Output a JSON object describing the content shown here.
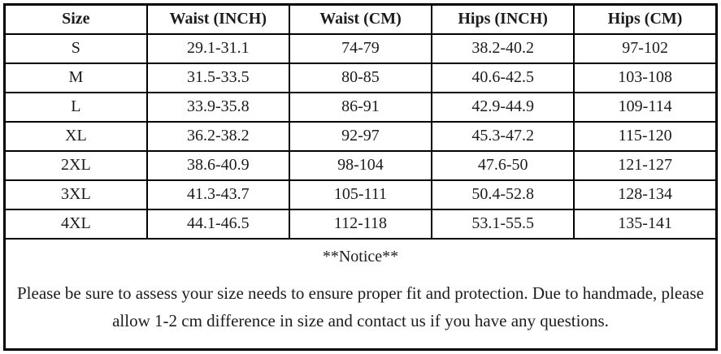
{
  "table": {
    "headers": [
      "Size",
      "Waist (INCH)",
      "Waist (CM)",
      "Hips (INCH)",
      "Hips (CM)"
    ],
    "rows": [
      [
        "S",
        "29.1-31.1",
        "74-79",
        "38.2-40.2",
        "97-102"
      ],
      [
        "M",
        "31.5-33.5",
        "80-85",
        "40.6-42.5",
        "103-108"
      ],
      [
        "L",
        "33.9-35.8",
        "86-91",
        "42.9-44.9",
        "109-114"
      ],
      [
        "XL",
        "36.2-38.2",
        "92-97",
        "45.3-47.2",
        "115-120"
      ],
      [
        "2XL",
        "38.6-40.9",
        "98-104",
        "47.6-50",
        "121-127"
      ],
      [
        "3XL",
        "41.3-43.7",
        "105-111",
        "50.4-52.8",
        "128-134"
      ],
      [
        "4XL",
        "44.1-46.5",
        "112-118",
        "53.1-55.5",
        "135-141"
      ]
    ]
  },
  "notice": {
    "title": "**Notice**",
    "body": "Please be sure to assess your size needs to ensure proper fit and protection. Due to handmade, please allow 1-2 cm difference in size and contact us if you have any questions."
  },
  "colors": {
    "border": "#000000",
    "text": "#1c1c1c",
    "background": "#ffffff"
  }
}
